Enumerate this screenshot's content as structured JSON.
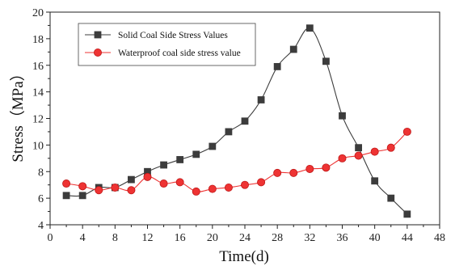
{
  "chart_data": {
    "type": "line",
    "xlabel": "Time(d)",
    "ylabel": "Stress（MPa）",
    "xlim": [
      0,
      48
    ],
    "ylim": [
      4,
      20
    ],
    "xticks": [
      0,
      4,
      8,
      12,
      16,
      20,
      24,
      28,
      32,
      36,
      40,
      44,
      48
    ],
    "yticks": [
      4,
      6,
      8,
      10,
      12,
      14,
      16,
      18,
      20
    ],
    "grid": false,
    "legend_position": "top-left",
    "series": [
      {
        "name": "Solid Coal Side Stress Values",
        "color": "#3c3c3c",
        "marker": "square",
        "x": [
          2,
          4,
          6,
          8,
          10,
          12,
          14,
          16,
          18,
          20,
          22,
          24,
          26,
          28,
          30,
          32,
          34,
          36,
          38,
          40,
          42,
          44
        ],
        "y": [
          6.2,
          6.2,
          6.8,
          6.8,
          7.4,
          8.0,
          8.5,
          8.9,
          9.3,
          9.9,
          11.0,
          11.8,
          13.4,
          15.9,
          17.2,
          18.8,
          16.3,
          12.2,
          9.8,
          7.3,
          6.0,
          4.8
        ]
      },
      {
        "name": "Waterproof coal side stress value",
        "color": "#ee3333",
        "marker": "circle",
        "x": [
          2,
          4,
          6,
          8,
          10,
          12,
          14,
          16,
          18,
          20,
          22,
          24,
          26,
          28,
          30,
          32,
          34,
          36,
          38,
          40,
          42,
          44
        ],
        "y": [
          7.1,
          6.9,
          6.6,
          6.8,
          6.6,
          7.6,
          7.1,
          7.2,
          6.5,
          6.7,
          6.8,
          7.0,
          7.2,
          7.9,
          7.9,
          8.2,
          8.3,
          9.0,
          9.2,
          9.5,
          9.8,
          11.0
        ]
      }
    ]
  }
}
